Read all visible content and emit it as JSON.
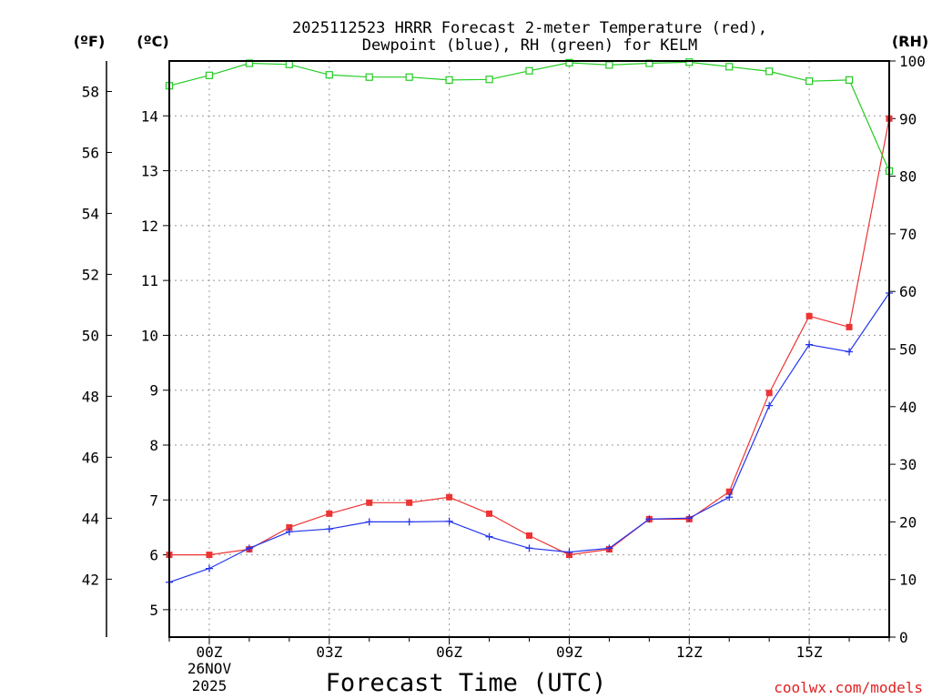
{
  "chart_data": {
    "type": "line",
    "title_line1": "2025112523 HRRR Forecast 2-meter Temperature (red),",
    "title_line2": "Dewpoint (blue), RH (green) for KELM",
    "xlabel": "Forecast Time (UTC)",
    "unit_f": "(ºF)",
    "unit_c": "(ºC)",
    "unit_rh": "(RH)",
    "credit": "coolwx.com/models",
    "x_range": [
      -1,
      17
    ],
    "x_ticks": [
      {
        "x": 0,
        "label": "00Z"
      },
      {
        "x": 3,
        "label": "03Z"
      },
      {
        "x": 6,
        "label": "06Z"
      },
      {
        "x": 9,
        "label": "09Z"
      },
      {
        "x": 12,
        "label": "12Z"
      },
      {
        "x": 15,
        "label": "15Z"
      }
    ],
    "x_date_line1": "26NOV",
    "x_date_line2": "2025",
    "c_axis": {
      "range": [
        4.5,
        15
      ],
      "ticks": [
        5,
        6,
        7,
        8,
        9,
        10,
        11,
        12,
        13,
        14
      ]
    },
    "f_axis": {
      "range": [
        40.1,
        59
      ],
      "ticks": [
        42,
        44,
        46,
        48,
        50,
        52,
        54,
        56,
        58
      ]
    },
    "rh_axis": {
      "range": [
        0,
        100
      ],
      "ticks": [
        0,
        10,
        20,
        30,
        40,
        50,
        60,
        70,
        80,
        90,
        100
      ]
    },
    "hours": [
      -1,
      0,
      1,
      2,
      3,
      4,
      5,
      6,
      7,
      8,
      9,
      10,
      11,
      12,
      13,
      14,
      15,
      16,
      17
    ],
    "series": [
      {
        "name": "Temperature",
        "unit": "C",
        "axis": "c",
        "color": "#ee3333",
        "marker": "square",
        "values": [
          6.0,
          6.0,
          6.1,
          6.5,
          6.75,
          6.95,
          6.95,
          7.05,
          6.75,
          6.35,
          6.0,
          6.1,
          6.65,
          6.65,
          7.15,
          8.95,
          10.35,
          10.15,
          13.95
        ]
      },
      {
        "name": "Dewpoint",
        "unit": "C",
        "axis": "c",
        "color": "#2233ee",
        "marker": "plus",
        "values": [
          5.5,
          5.75,
          6.12,
          6.42,
          6.47,
          6.6,
          6.6,
          6.61,
          6.33,
          6.12,
          6.05,
          6.12,
          6.65,
          6.67,
          7.05,
          8.72,
          9.83,
          9.7,
          10.77
        ]
      },
      {
        "name": "RH",
        "unit": "%",
        "axis": "rh",
        "color": "#22cc22",
        "marker": "open-square",
        "values": [
          95.7,
          97.5,
          99.6,
          99.4,
          97.6,
          97.2,
          97.2,
          96.7,
          96.8,
          98.3,
          99.7,
          99.3,
          99.6,
          99.8,
          99.0,
          98.2,
          96.5,
          96.7,
          80.9
        ]
      }
    ]
  }
}
